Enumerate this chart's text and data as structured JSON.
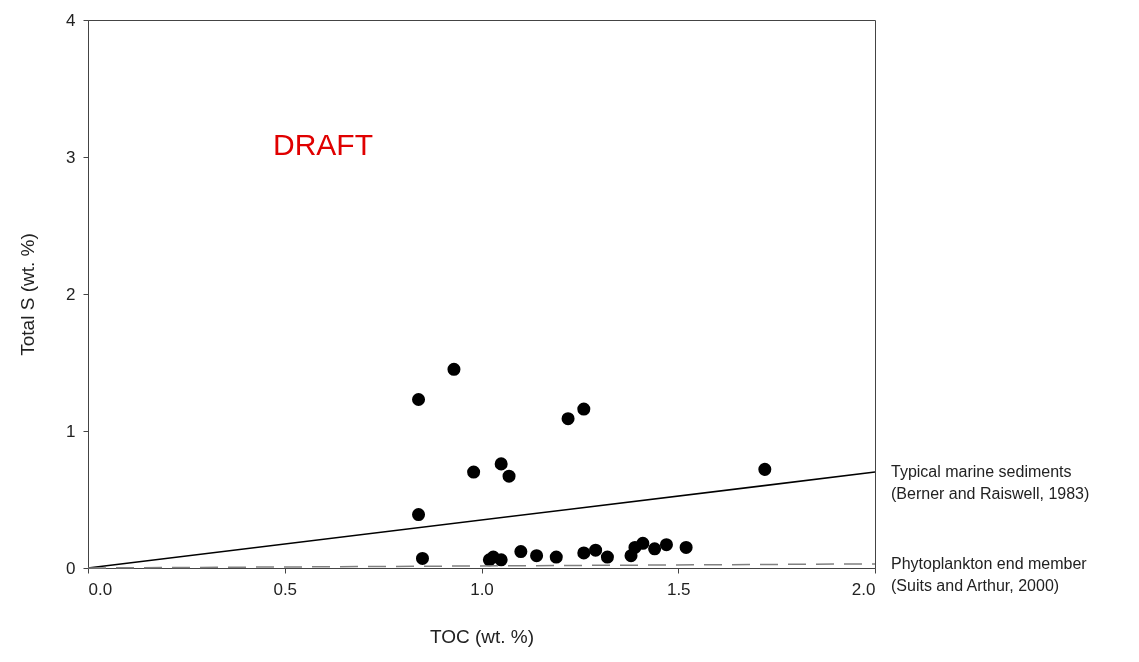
{
  "chart_data": {
    "type": "scatter",
    "xlabel": "TOC (wt. %)",
    "ylabel": "Total S (wt. %)",
    "xlim": [
      0,
      2
    ],
    "xticks": [
      {
        "value": 0,
        "label": "0.0"
      },
      {
        "value": 0.5,
        "label": "0.5"
      },
      {
        "value": 1,
        "label": "1.0"
      },
      {
        "value": 1.5,
        "label": "1.5"
      },
      {
        "value": 2,
        "label": "2.0"
      }
    ],
    "ylim": [
      0,
      4
    ],
    "yticks": [
      0,
      1,
      2,
      3,
      4
    ],
    "grid": false,
    "series": [
      {
        "type": "scatter",
        "color": "#000000",
        "marker": "circle",
        "x": [
          0.84,
          0.93,
          1.22,
          1.26,
          0.98,
          1.05,
          1.07,
          0.84,
          0.85,
          1.02,
          1.03,
          1.05,
          1.1,
          1.14,
          1.19,
          1.26,
          1.29,
          1.32,
          1.38,
          1.39,
          1.41,
          1.44,
          1.47,
          1.52,
          1.72
        ],
        "values": [
          1.23,
          1.45,
          1.09,
          1.16,
          0.7,
          0.76,
          0.67,
          0.39,
          0.07,
          0.06,
          0.08,
          0.06,
          0.12,
          0.09,
          0.08,
          0.11,
          0.13,
          0.08,
          0.09,
          0.15,
          0.18,
          0.14,
          0.17,
          0.15,
          0.72
        ]
      },
      {
        "type": "line",
        "color": "#000000",
        "line_style": "solid",
        "marker": "none",
        "x": [
          0,
          2
        ],
        "values": [
          0,
          0.7
        ]
      },
      {
        "type": "line",
        "color": "#808080",
        "line_style": "dashed",
        "marker": "none",
        "x": [
          0,
          2
        ],
        "values": [
          0,
          0.03
        ]
      }
    ],
    "annotations": [
      "DRAFT",
      {
        "text": "Typical marine sediments\n(Berner and Raiswell, 1983)",
        "x": 2,
        "y": 0.7
      },
      {
        "text": "Phytoplankton end member\n(Suits and Arthur, 2000)",
        "x": 2,
        "y": 0.03
      }
    ]
  }
}
